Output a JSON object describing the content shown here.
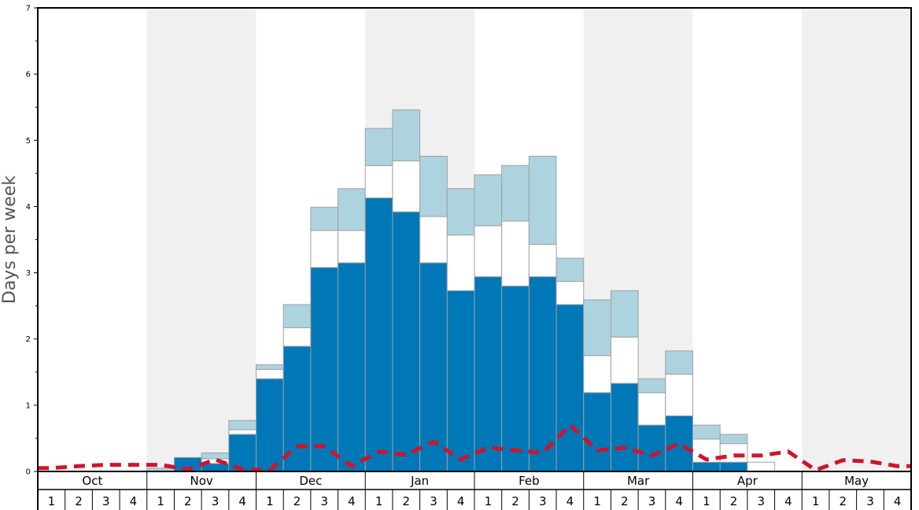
{
  "chart_data": {
    "type": "bar",
    "stacked": true,
    "ylabel": "Days per week",
    "ylim": [
      0,
      7
    ],
    "yticks": [
      0,
      1,
      2,
      3,
      4,
      5,
      6,
      7
    ],
    "months": [
      "Oct",
      "Nov",
      "Dec",
      "Jan",
      "Feb",
      "Mar",
      "Apr",
      "May"
    ],
    "weeks": [
      "1",
      "2",
      "3",
      "4"
    ],
    "colors": {
      "series1": "#0077b6",
      "series2": "#ffffff",
      "series3": "#add3df",
      "line": "#d0142c",
      "band": "#f0f0f0"
    },
    "series": [
      {
        "values": [
          0,
          0,
          0,
          0,
          0,
          0.21,
          0.12,
          0.56,
          1.4,
          1.89,
          3.08,
          3.15,
          4.13,
          3.92,
          3.15,
          2.73,
          2.94,
          2.8,
          2.94,
          2.52,
          1.19,
          1.33,
          0.7,
          0.84,
          0.14,
          0.14,
          0,
          0,
          0,
          0,
          0,
          0
        ]
      },
      {
        "values": [
          0,
          0,
          0,
          0,
          0,
          0,
          0.07,
          0.07,
          0.14,
          0.28,
          0.56,
          0.49,
          0.49,
          0.77,
          0.7,
          0.84,
          0.77,
          0.98,
          0.49,
          0.35,
          0.56,
          0.7,
          0.49,
          0.63,
          0.35,
          0.28,
          0.14,
          0,
          0,
          0,
          0,
          0
        ]
      },
      {
        "values": [
          0,
          0,
          0,
          0,
          0.05,
          0,
          0.09,
          0.14,
          0.07,
          0.35,
          0.35,
          0.63,
          0.56,
          0.77,
          0.91,
          0.7,
          0.77,
          0.84,
          1.33,
          0.35,
          0.84,
          0.7,
          0.21,
          0.35,
          0.21,
          0.14,
          0,
          0,
          0,
          0,
          0,
          0
        ]
      }
    ],
    "line": [
      0.05,
      0.08,
      0.1,
      0.1,
      0.1,
      0.03,
      0.18,
      0.03,
      0.02,
      0.38,
      0.38,
      0.08,
      0.3,
      0.25,
      0.45,
      0.18,
      0.36,
      0.32,
      0.28,
      0.7,
      0.32,
      0.36,
      0.24,
      0.42,
      0.18,
      0.24,
      0.24,
      0.3,
      0.02,
      0.17,
      0.15,
      0.08
    ]
  }
}
